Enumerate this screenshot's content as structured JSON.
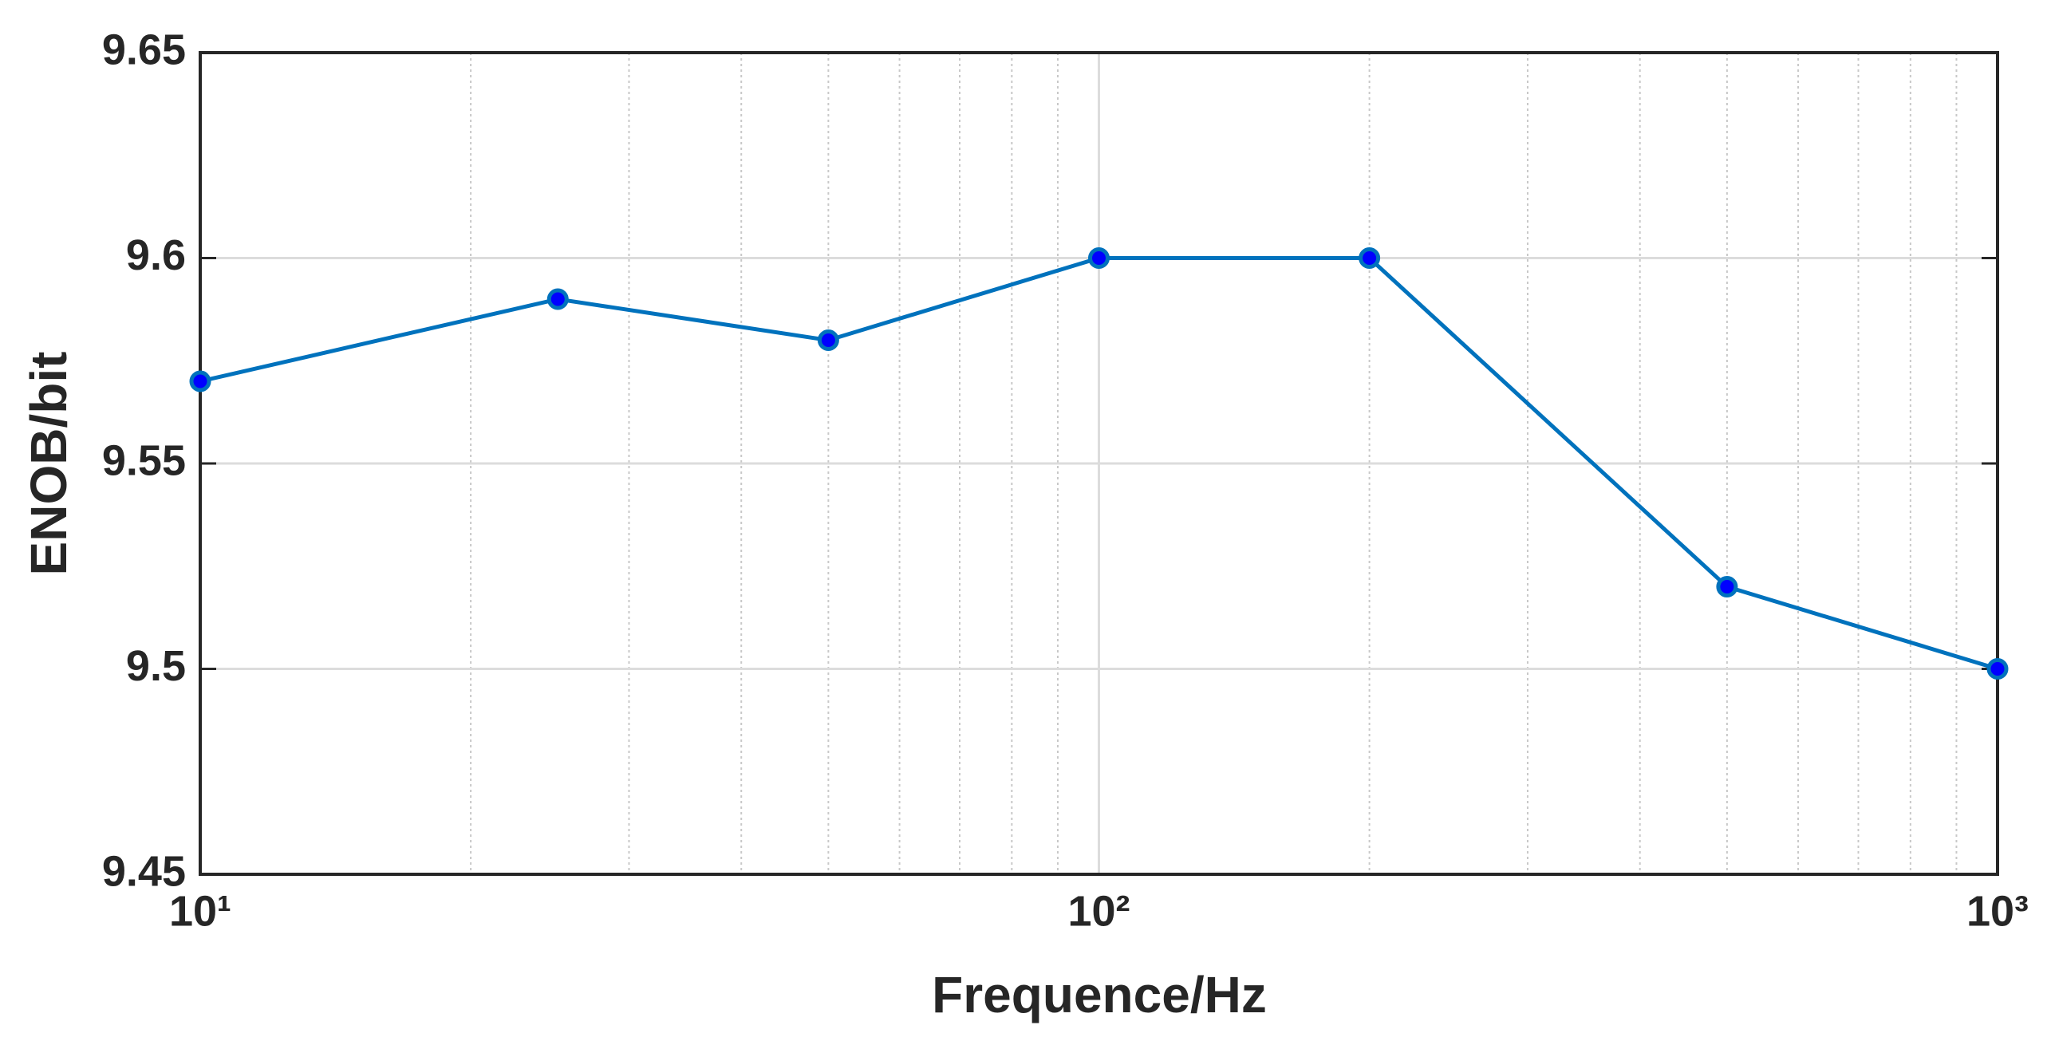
{
  "chart_data": {
    "type": "line",
    "x_label": "Frequence/Hz",
    "y_label": "ENOB/bit",
    "x": [
      10,
      25,
      50,
      100,
      200,
      500,
      1000
    ],
    "values": [
      9.57,
      9.59,
      9.58,
      9.6,
      9.6,
      9.52,
      9.5
    ],
    "color": "#0072bd",
    "marker_color": "#0000ff",
    "xscale": "log",
    "xlim": [
      10,
      1000
    ],
    "xticks": [
      {
        "value": 10,
        "label": "10¹"
      },
      {
        "value": 100,
        "label": "10²"
      },
      {
        "value": 1000,
        "label": "10³"
      }
    ],
    "xminorticks": [
      20,
      30,
      40,
      50,
      60,
      70,
      80,
      90,
      200,
      300,
      400,
      500,
      600,
      700,
      800,
      900
    ],
    "ylim": [
      9.45,
      9.65
    ],
    "yticks": [
      9.45,
      9.5,
      9.55,
      9.6,
      9.65
    ],
    "grid": true
  }
}
